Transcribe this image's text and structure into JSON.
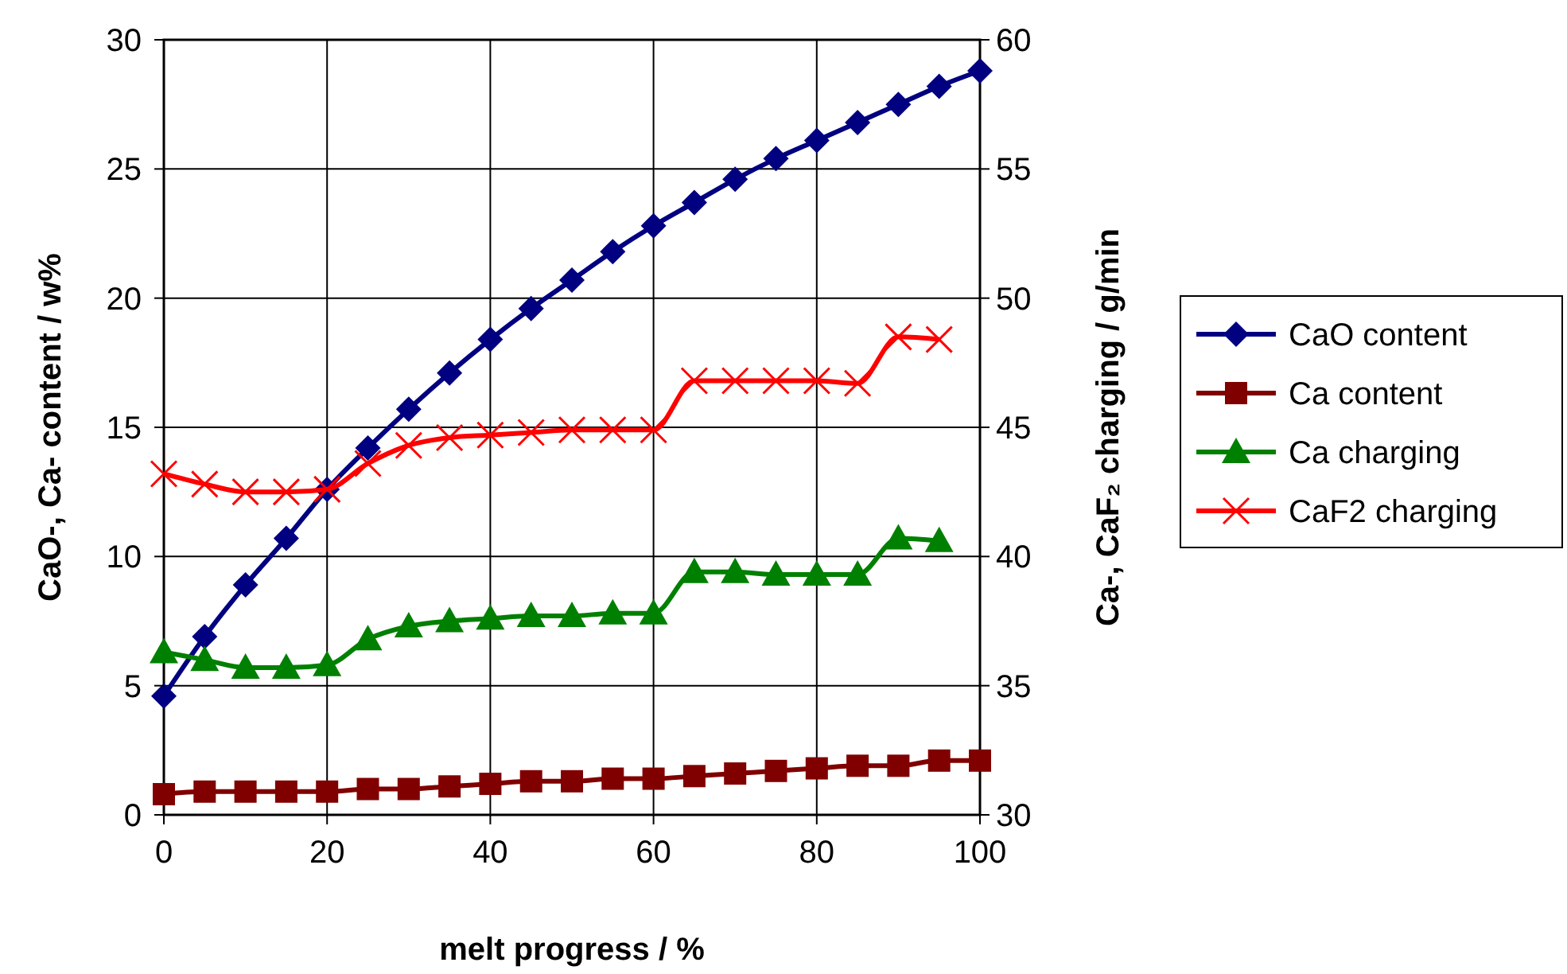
{
  "chart_data": {
    "type": "line",
    "xlabel": "melt progress / %",
    "ylabel": "CaO-, Ca- content / w%",
    "y2label": "Ca-, CaF₂ charging / g/min",
    "xlim": [
      0,
      100
    ],
    "xticks": [
      0,
      20,
      40,
      60,
      80,
      100
    ],
    "ylim": [
      0,
      30
    ],
    "yticks": [
      0,
      5,
      10,
      15,
      20,
      25,
      30
    ],
    "y2lim": [
      30,
      60
    ],
    "y2ticks": [
      30,
      35,
      40,
      45,
      50,
      55,
      60
    ],
    "grid": true,
    "legend": "right",
    "line_style": "solid",
    "series": [
      {
        "name": "CaO content",
        "color": "#000080",
        "marker": "diamond",
        "x": [
          0,
          5,
          10,
          15,
          20,
          25,
          30,
          35,
          40,
          45,
          50,
          55,
          60,
          65,
          70,
          75,
          80,
          85,
          90,
          95,
          100
        ],
        "values": [
          4.6,
          6.9,
          8.9,
          10.7,
          12.6,
          14.2,
          15.7,
          17.1,
          18.4,
          19.6,
          20.7,
          21.8,
          22.8,
          23.7,
          24.6,
          25.4,
          26.1,
          26.8,
          27.5,
          28.2,
          28.8
        ]
      },
      {
        "name": "Ca content",
        "color": "#800000",
        "marker": "square",
        "x": [
          0,
          5,
          10,
          15,
          20,
          25,
          30,
          35,
          40,
          45,
          50,
          55,
          60,
          65,
          70,
          75,
          80,
          85,
          90,
          95,
          100
        ],
        "values": [
          0.8,
          0.9,
          0.9,
          0.9,
          0.9,
          1.0,
          1.0,
          1.1,
          1.2,
          1.3,
          1.3,
          1.4,
          1.4,
          1.5,
          1.6,
          1.7,
          1.8,
          1.9,
          1.9,
          2.1,
          2.1
        ]
      },
      {
        "name": "Ca charging",
        "color": "#008000",
        "marker": "triangle",
        "axis": "y2",
        "x": [
          0,
          5,
          10,
          15,
          20,
          25,
          30,
          35,
          40,
          45,
          50,
          55,
          60,
          65,
          70,
          75,
          80,
          85,
          90,
          95
        ],
        "values": [
          36.3,
          36.0,
          35.7,
          35.7,
          35.8,
          36.8,
          37.3,
          37.5,
          37.6,
          37.7,
          37.7,
          37.8,
          37.8,
          39.4,
          39.4,
          39.3,
          39.3,
          39.3,
          40.7,
          40.6
        ]
      },
      {
        "name": "CaF2 charging",
        "color": "#ff0000",
        "marker": "cross",
        "axis": "y2",
        "x": [
          0,
          5,
          10,
          15,
          20,
          25,
          30,
          35,
          40,
          45,
          50,
          55,
          60,
          65,
          70,
          75,
          80,
          85,
          90,
          95
        ],
        "values": [
          43.2,
          42.8,
          42.5,
          42.5,
          42.6,
          43.6,
          44.3,
          44.6,
          44.7,
          44.8,
          44.9,
          44.9,
          44.9,
          46.8,
          46.8,
          46.8,
          46.8,
          46.7,
          48.5,
          48.4
        ]
      }
    ]
  }
}
